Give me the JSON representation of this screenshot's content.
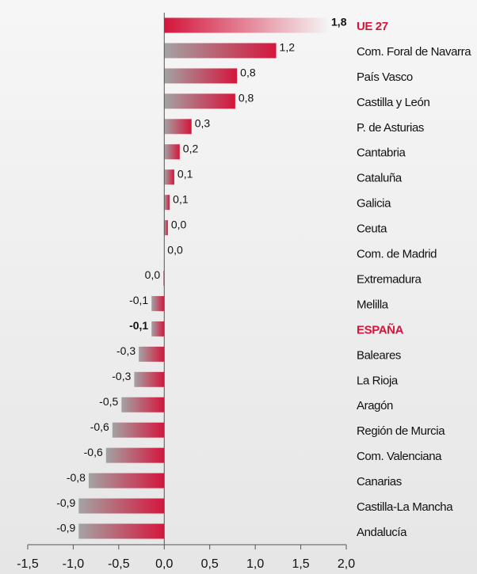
{
  "chart_data": {
    "type": "barh",
    "categories": [
      "UE 27",
      "Com. Foral de Navarra",
      "País Vasco",
      "Castilla y León",
      "P. de Asturias",
      "Cantabria",
      "Cataluña",
      "Galicia",
      "Ceuta",
      "Com. de Madrid",
      "Extremadura",
      "Melilla",
      "ESPAÑA",
      "Baleares",
      "La Rioja",
      "Aragón",
      "Región de Murcia",
      "Com. Valenciana",
      "Canarias",
      "Castilla-La Mancha",
      "Andalucía"
    ],
    "values": [
      1.8,
      1.23,
      0.8,
      0.78,
      0.3,
      0.17,
      0.11,
      0.06,
      0.04,
      0,
      -0.01,
      -0.14,
      -0.14,
      -0.28,
      -0.33,
      -0.47,
      -0.57,
      -0.64,
      -0.83,
      -0.94,
      -0.94
    ],
    "value_labels": [
      "1,8",
      "1,2",
      "0,8",
      "0,8",
      "0,3",
      "0,2",
      "0,1",
      "0,1",
      "0,0",
      "0,0",
      "0,0",
      "-0,1",
      "-0,1",
      "-0,3",
      "-0,3",
      "-0,5",
      "-0,6",
      "-0,6",
      "-0,8",
      "-0,9",
      "-0,9"
    ],
    "color": "#d4163c",
    "base_color": "#a3a3a3",
    "highlight": [
      0,
      12
    ],
    "xlim": [
      -1.5,
      2.0
    ],
    "xticks": [
      {
        "value": -1.5,
        "label": "-1,5"
      },
      {
        "value": -1.0,
        "label": "-1,0"
      },
      {
        "value": -0.5,
        "label": "-0,5"
      },
      {
        "value": 0,
        "label": "0,0"
      },
      {
        "value": 0.5,
        "label": "0,5"
      },
      {
        "value": 1.0,
        "label": "1,0"
      },
      {
        "value": 1.5,
        "label": "1,5"
      },
      {
        "value": 2.0,
        "label": "2,0"
      }
    ]
  }
}
